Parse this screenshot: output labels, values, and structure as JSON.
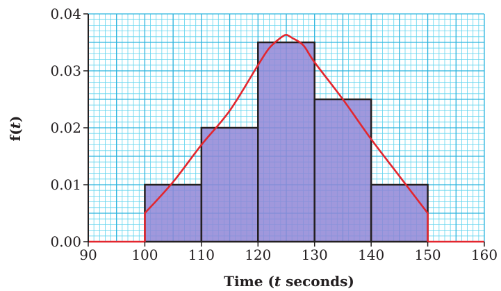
{
  "chart_data": {
    "type": "histogram",
    "xlabel": "Time (t seconds)",
    "xlabel_parts": {
      "before": "Time (",
      "var": "t",
      "after": " seconds)"
    },
    "ylabel": "f(t)",
    "ylabel_parts": {
      "before": "f(",
      "var": "t",
      "after": ")"
    },
    "xlim": [
      90,
      160
    ],
    "ylim": [
      0,
      0.04
    ],
    "x_ticks": [
      90,
      100,
      110,
      120,
      130,
      140,
      150,
      160
    ],
    "x_tick_labels": [
      "90",
      "100",
      "110",
      "120",
      "130",
      "140",
      "150",
      "160"
    ],
    "y_ticks": [
      0,
      0.01,
      0.02,
      0.03,
      0.04
    ],
    "y_tick_labels": [
      "0.00",
      "0.01",
      "0.02",
      "0.03",
      "0.04"
    ],
    "grid": true,
    "bins": [
      {
        "x0": 100,
        "x1": 110,
        "value": 0.01
      },
      {
        "x0": 110,
        "x1": 120,
        "value": 0.02
      },
      {
        "x0": 120,
        "x1": 130,
        "value": 0.035
      },
      {
        "x0": 130,
        "x1": 140,
        "value": 0.025
      },
      {
        "x0": 140,
        "x1": 150,
        "value": 0.01
      }
    ],
    "curve": {
      "x": [
        90,
        100,
        100,
        105,
        110,
        115,
        120,
        122,
        124,
        125,
        126,
        128,
        130,
        135,
        140,
        145,
        150,
        150,
        160
      ],
      "y": [
        0,
        0,
        0.005,
        0.0105,
        0.017,
        0.023,
        0.031,
        0.034,
        0.0358,
        0.0363,
        0.0358,
        0.0345,
        0.0315,
        0.025,
        0.018,
        0.0115,
        0.005,
        0,
        0
      ]
    },
    "colors": {
      "grid_minor": "#5fd4ee",
      "grid_major": "#2bb3dd",
      "bar_fill": "#8f86d6",
      "bar_stroke": "#231f20",
      "curve": "#e3262e",
      "axis": "#231f20"
    }
  }
}
